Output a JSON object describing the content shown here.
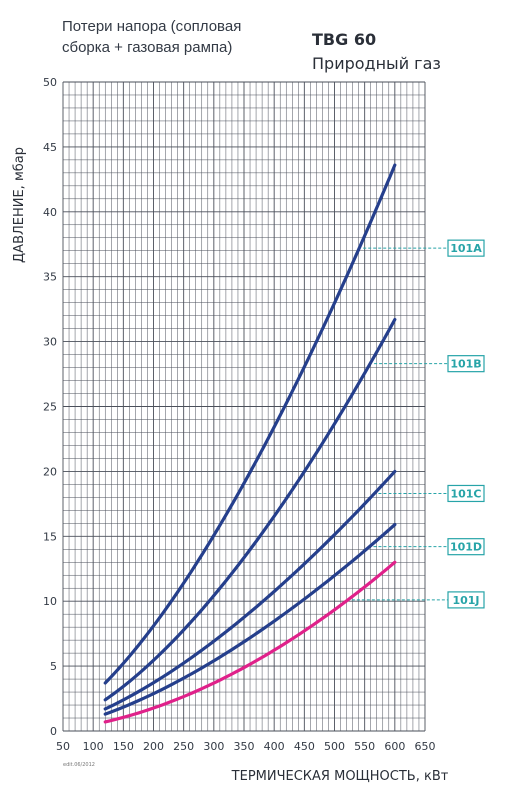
{
  "header": {
    "subtitle_line1": "Потери напора (сопловая",
    "subtitle_line2": "сборка + газовая рампа)",
    "model": "TBG 60",
    "fuel": "Природный газ"
  },
  "footnote": "edit.06/2012",
  "colors": {
    "grid": "#4a4f5a",
    "series_blue": "#253f8c",
    "series_magenta": "#e0218a",
    "label_teal": "#27a4a8"
  },
  "chart_data": {
    "type": "line",
    "xlabel": "ТЕРМИЧЕСКАЯ МОЩНОСТЬ, кВт",
    "ylabel": "ДАВЛЕНИЕ, мбар",
    "xlim": [
      50,
      650
    ],
    "ylim": [
      0,
      50
    ],
    "xticks": [
      50,
      100,
      150,
      200,
      250,
      300,
      350,
      400,
      450,
      500,
      550,
      600,
      650
    ],
    "yticks": [
      0,
      5,
      10,
      15,
      20,
      25,
      30,
      35,
      40,
      45,
      50
    ],
    "grid": true,
    "series": [
      {
        "name": "101A",
        "color": "#253f8c",
        "x": [
          120,
          600
        ],
        "y": [
          3.7,
          43.6
        ],
        "label_y": 37.2
      },
      {
        "name": "101B",
        "color": "#253f8c",
        "x": [
          120,
          600
        ],
        "y": [
          2.4,
          31.7
        ],
        "label_y": 28.3
      },
      {
        "name": "101C",
        "color": "#253f8c",
        "x": [
          120,
          600
        ],
        "y": [
          1.7,
          20.0
        ],
        "label_y": 18.3
      },
      {
        "name": "101D",
        "color": "#253f8c",
        "x": [
          120,
          600
        ],
        "y": [
          1.3,
          15.9
        ],
        "label_y": 14.2
      },
      {
        "name": "101J",
        "color": "#e0218a",
        "x": [
          120,
          600
        ],
        "y": [
          0.7,
          13.0
        ],
        "label_y": 10.1
      }
    ]
  }
}
